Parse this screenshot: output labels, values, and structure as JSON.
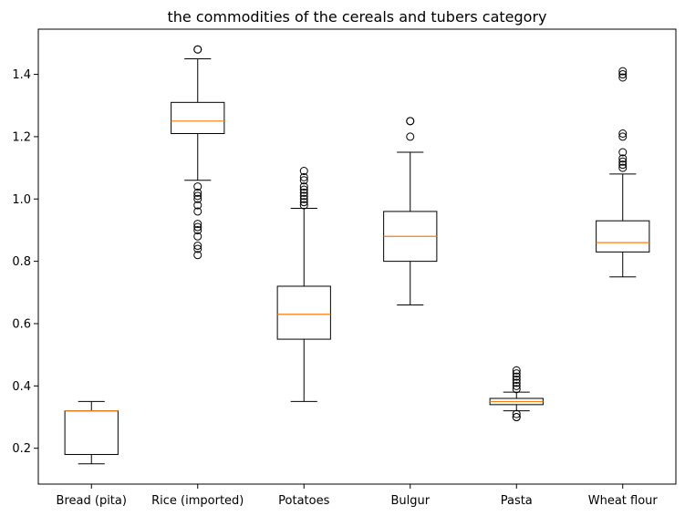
{
  "chart_data": {
    "type": "boxplot",
    "title": "the  commodities of the cereals and tubers category",
    "xlabel": "",
    "ylabel": "",
    "ylim": [
      0.085,
      1.545
    ],
    "yticks": [
      0.2,
      0.4,
      0.6,
      0.8,
      1.0,
      1.2,
      1.4
    ],
    "ytick_labels": [
      "0.2",
      "0.4",
      "0.6",
      "0.8",
      "1.0",
      "1.2",
      "1.4"
    ],
    "grid": false,
    "categories": [
      "Bread (pita)",
      "Rice (imported)",
      "Potatoes",
      "Bulgur",
      "Pasta",
      "Wheat flour"
    ],
    "boxes": [
      {
        "label": "Bread (pita)",
        "whisker_low": 0.15,
        "q1": 0.18,
        "median": 0.32,
        "q3": 0.32,
        "whisker_high": 0.35,
        "outliers": []
      },
      {
        "label": "Rice (imported)",
        "whisker_low": 1.06,
        "q1": 1.21,
        "median": 1.25,
        "q3": 1.31,
        "whisker_high": 1.45,
        "outliers": [
          1.48,
          1.48,
          1.04,
          1.02,
          1.01,
          1.0,
          0.98,
          0.96,
          0.92,
          0.91,
          0.9,
          0.88,
          0.85,
          0.84,
          0.82
        ]
      },
      {
        "label": "Potatoes",
        "whisker_low": 0.35,
        "q1": 0.55,
        "median": 0.63,
        "q3": 0.72,
        "whisker_high": 0.97,
        "outliers": [
          0.98,
          0.99,
          1.0,
          1.01,
          1.02,
          1.03,
          1.04,
          1.06,
          1.07,
          1.09
        ]
      },
      {
        "label": "Bulgur",
        "whisker_low": 0.66,
        "q1": 0.8,
        "median": 0.88,
        "q3": 0.96,
        "whisker_high": 1.15,
        "outliers": [
          1.2,
          1.25,
          1.25
        ]
      },
      {
        "label": "Pasta",
        "whisker_low": 0.32,
        "q1": 0.34,
        "median": 0.35,
        "q3": 0.36,
        "whisker_high": 0.38,
        "outliers": [
          0.39,
          0.4,
          0.41,
          0.42,
          0.43,
          0.44,
          0.45,
          0.3,
          0.3,
          0.31
        ]
      },
      {
        "label": "Wheat flour",
        "whisker_low": 0.75,
        "q1": 0.83,
        "median": 0.86,
        "q3": 0.93,
        "whisker_high": 1.08,
        "outliers": [
          1.1,
          1.11,
          1.12,
          1.13,
          1.15,
          1.2,
          1.21,
          1.39,
          1.4,
          1.41
        ]
      }
    ],
    "colors": {
      "box": "#000000",
      "median": "#ff7f0e",
      "outlier": "#000000",
      "background": "#ffffff"
    }
  }
}
